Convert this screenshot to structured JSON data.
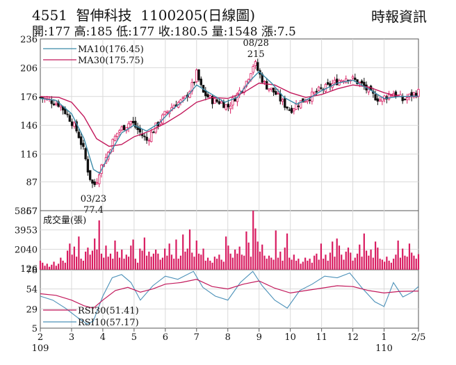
{
  "header": {
    "code": "4551",
    "name": "智伸科技",
    "date": "1100205",
    "chart_kind": "(日線圖)",
    "publisher": "時報資訊",
    "quote": [
      {
        "label": "開",
        "value": "177"
      },
      {
        "label": "高",
        "value": "185"
      },
      {
        "label": "低",
        "value": "177"
      },
      {
        "label": "收",
        "value": "180.5"
      },
      {
        "label": "量",
        "value": "1548"
      },
      {
        "label": "漲",
        "value": "7.5"
      }
    ]
  },
  "colors": {
    "up": "#d81b60",
    "down": "#111111",
    "ma10": "#3a8aa8",
    "ma30": "#c2185b",
    "volume": "#d81b60",
    "rsi30": "#c2185b",
    "rsi10": "#4a90b8",
    "grid": "#d9d9d9",
    "frame": "#555555"
  },
  "chart_data": [
    {
      "type": "candlestick",
      "panel": "price",
      "ylim": [
        57,
        236
      ],
      "yticks": [
        57,
        87,
        116,
        146,
        176,
        206,
        236
      ],
      "x_months": [
        "2",
        "3",
        "4",
        "5",
        "6",
        "7",
        "8",
        "9",
        "10",
        "11",
        "12",
        "1",
        "2/5"
      ],
      "x_years": [
        {
          "at": "2",
          "label": "109"
        },
        {
          "at": "1",
          "label": "110"
        }
      ],
      "legend": [
        {
          "name": "MA10",
          "value": "(176.45)"
        },
        {
          "name": "MA30",
          "value": "(175.75)"
        }
      ],
      "annotations": [
        {
          "date": "03/23",
          "value": "77.4",
          "kind": "low"
        },
        {
          "date": "08/28",
          "value": "215",
          "kind": "high"
        }
      ],
      "series_close": [
        {
          "m": 2.0,
          "v": 175
        },
        {
          "m": 2.3,
          "v": 172
        },
        {
          "m": 2.6,
          "v": 168
        },
        {
          "m": 2.8,
          "v": 160
        },
        {
          "m": 3.0,
          "v": 150
        },
        {
          "m": 3.2,
          "v": 138
        },
        {
          "m": 3.4,
          "v": 118
        },
        {
          "m": 3.55,
          "v": 95
        },
        {
          "m": 3.7,
          "v": 82
        },
        {
          "m": 3.8,
          "v": 88
        },
        {
          "m": 3.9,
          "v": 100
        },
        {
          "m": 4.1,
          "v": 112
        },
        {
          "m": 4.3,
          "v": 128
        },
        {
          "m": 4.5,
          "v": 140
        },
        {
          "m": 4.7,
          "v": 145
        },
        {
          "m": 4.9,
          "v": 150
        },
        {
          "m": 5.1,
          "v": 142
        },
        {
          "m": 5.4,
          "v": 130
        },
        {
          "m": 5.7,
          "v": 145
        },
        {
          "m": 6.0,
          "v": 158
        },
        {
          "m": 6.3,
          "v": 168
        },
        {
          "m": 6.6,
          "v": 172
        },
        {
          "m": 6.9,
          "v": 190
        },
        {
          "m": 7.0,
          "v": 200
        },
        {
          "m": 7.2,
          "v": 180
        },
        {
          "m": 7.5,
          "v": 172
        },
        {
          "m": 7.8,
          "v": 170
        },
        {
          "m": 8.0,
          "v": 165
        },
        {
          "m": 8.3,
          "v": 178
        },
        {
          "m": 8.6,
          "v": 192
        },
        {
          "m": 8.85,
          "v": 212
        },
        {
          "m": 9.0,
          "v": 200
        },
        {
          "m": 9.2,
          "v": 188
        },
        {
          "m": 9.5,
          "v": 180
        },
        {
          "m": 9.8,
          "v": 168
        },
        {
          "m": 10.0,
          "v": 162
        },
        {
          "m": 10.3,
          "v": 170
        },
        {
          "m": 10.6,
          "v": 175
        },
        {
          "m": 10.9,
          "v": 182
        },
        {
          "m": 11.2,
          "v": 186
        },
        {
          "m": 11.5,
          "v": 192
        },
        {
          "m": 11.8,
          "v": 196
        },
        {
          "m": 12.0,
          "v": 194
        },
        {
          "m": 12.3,
          "v": 188
        },
        {
          "m": 12.6,
          "v": 178
        },
        {
          "m": 12.9,
          "v": 172
        },
        {
          "m": 13.0,
          "v": 175
        },
        {
          "m": 13.3,
          "v": 180
        },
        {
          "m": 13.6,
          "v": 172
        },
        {
          "m": 13.9,
          "v": 178
        },
        {
          "m": 14.1,
          "v": 180.5
        }
      ],
      "ma10": [
        {
          "m": 2.0,
          "v": 174
        },
        {
          "m": 2.5,
          "v": 172
        },
        {
          "m": 3.0,
          "v": 158
        },
        {
          "m": 3.4,
          "v": 132
        },
        {
          "m": 3.7,
          "v": 100
        },
        {
          "m": 3.9,
          "v": 96
        },
        {
          "m": 4.2,
          "v": 115
        },
        {
          "m": 4.6,
          "v": 138
        },
        {
          "m": 5.0,
          "v": 146
        },
        {
          "m": 5.4,
          "v": 140
        },
        {
          "m": 5.8,
          "v": 148
        },
        {
          "m": 6.2,
          "v": 162
        },
        {
          "m": 6.6,
          "v": 172
        },
        {
          "m": 7.0,
          "v": 188
        },
        {
          "m": 7.4,
          "v": 180
        },
        {
          "m": 7.9,
          "v": 170
        },
        {
          "m": 8.3,
          "v": 175
        },
        {
          "m": 8.7,
          "v": 192
        },
        {
          "m": 9.0,
          "v": 202
        },
        {
          "m": 9.4,
          "v": 190
        },
        {
          "m": 9.8,
          "v": 175
        },
        {
          "m": 10.2,
          "v": 168
        },
        {
          "m": 10.6,
          "v": 174
        },
        {
          "m": 11.0,
          "v": 182
        },
        {
          "m": 11.5,
          "v": 190
        },
        {
          "m": 12.0,
          "v": 193
        },
        {
          "m": 12.5,
          "v": 184
        },
        {
          "m": 13.0,
          "v": 174
        },
        {
          "m": 13.5,
          "v": 176
        },
        {
          "m": 14.1,
          "v": 176.45
        }
      ],
      "ma30": [
        {
          "m": 2.0,
          "v": 176
        },
        {
          "m": 2.6,
          "v": 175
        },
        {
          "m": 3.0,
          "v": 170
        },
        {
          "m": 3.4,
          "v": 155
        },
        {
          "m": 3.8,
          "v": 132
        },
        {
          "m": 4.2,
          "v": 124
        },
        {
          "m": 4.6,
          "v": 126
        },
        {
          "m": 5.0,
          "v": 134
        },
        {
          "m": 5.5,
          "v": 140
        },
        {
          "m": 6.0,
          "v": 148
        },
        {
          "m": 6.5,
          "v": 158
        },
        {
          "m": 7.0,
          "v": 170
        },
        {
          "m": 7.5,
          "v": 175
        },
        {
          "m": 8.0,
          "v": 174
        },
        {
          "m": 8.5,
          "v": 180
        },
        {
          "m": 9.0,
          "v": 190
        },
        {
          "m": 9.5,
          "v": 188
        },
        {
          "m": 10.0,
          "v": 180
        },
        {
          "m": 10.5,
          "v": 175
        },
        {
          "m": 11.0,
          "v": 178
        },
        {
          "m": 11.5,
          "v": 184
        },
        {
          "m": 12.0,
          "v": 188
        },
        {
          "m": 12.5,
          "v": 186
        },
        {
          "m": 13.0,
          "v": 180
        },
        {
          "m": 13.5,
          "v": 176
        },
        {
          "m": 14.1,
          "v": 175.75
        }
      ]
    },
    {
      "type": "bar",
      "panel": "volume",
      "title": "成交量(張)",
      "ylim": [
        0,
        5867
      ],
      "yticks": [
        126,
        2040,
        3953,
        5867
      ],
      "values": [
        900,
        700,
        400,
        600,
        300,
        500,
        800,
        400,
        600,
        1200,
        900,
        700,
        1900,
        2600,
        1500,
        2300,
        1300,
        3300,
        1100,
        900,
        1800,
        2200,
        1500,
        1900,
        3100,
        2000,
        4900,
        1600,
        1200,
        2400,
        1300,
        1600,
        1100,
        2900,
        1800,
        1200,
        2000,
        1100,
        1500,
        1300,
        2400,
        3000,
        1100,
        700,
        2100,
        1900,
        3200,
        1400,
        1800,
        1300,
        1600,
        2000,
        1600,
        1000,
        1200,
        2100,
        1400,
        2600,
        1500,
        1100,
        3000,
        1100,
        1400,
        3500,
        1800,
        2100,
        4000,
        1700,
        1300,
        2900,
        1600,
        1500,
        2100,
        900,
        1200,
        900,
        700,
        1300,
        1100,
        1500,
        1000,
        800,
        3300,
        2400,
        1600,
        1200,
        2000,
        1600,
        2300,
        1500,
        1400,
        3800,
        2700,
        1300,
        5867,
        4100,
        2800,
        1800,
        2500,
        1400,
        1100,
        1400,
        1200,
        1000,
        3900,
        1200,
        1800,
        900,
        2200,
        3600,
        1200,
        1000,
        1500,
        900,
        1100,
        600,
        800,
        1200,
        900,
        1100,
        700,
        1400,
        1600,
        1000,
        2600,
        1100,
        1500,
        900,
        1700,
        2800,
        1300,
        3100,
        2400,
        1500,
        1000,
        1800,
        2200,
        1700,
        900,
        1200,
        1600,
        2500,
        1300,
        3600,
        1900,
        1400,
        2000,
        1200,
        2800,
        2200,
        1100,
        1000,
        800,
        1300,
        900,
        700,
        1100,
        1500,
        2900,
        1200,
        2100,
        1400,
        1300,
        2600,
        1700,
        1400,
        1100,
        1548
      ]
    },
    {
      "type": "line",
      "panel": "rsi",
      "ylim": [
        5,
        78
      ],
      "yticks": [
        5,
        29,
        54,
        78
      ],
      "legend": [
        {
          "name": "RSI30",
          "value": "(51.41)"
        },
        {
          "name": "RSI10",
          "value": "(57.17)"
        }
      ],
      "rsi30": [
        {
          "m": 2.0,
          "v": 48
        },
        {
          "m": 2.5,
          "v": 46
        },
        {
          "m": 3.0,
          "v": 40
        },
        {
          "m": 3.4,
          "v": 33
        },
        {
          "m": 3.7,
          "v": 30
        },
        {
          "m": 4.0,
          "v": 40
        },
        {
          "m": 4.4,
          "v": 52
        },
        {
          "m": 4.8,
          "v": 56
        },
        {
          "m": 5.2,
          "v": 50
        },
        {
          "m": 5.6,
          "v": 54
        },
        {
          "m": 6.0,
          "v": 60
        },
        {
          "m": 6.5,
          "v": 62
        },
        {
          "m": 7.0,
          "v": 66
        },
        {
          "m": 7.5,
          "v": 57
        },
        {
          "m": 8.0,
          "v": 54
        },
        {
          "m": 8.5,
          "v": 60
        },
        {
          "m": 9.0,
          "v": 64
        },
        {
          "m": 9.5,
          "v": 55
        },
        {
          "m": 10.0,
          "v": 49
        },
        {
          "m": 10.5,
          "v": 52
        },
        {
          "m": 11.0,
          "v": 55
        },
        {
          "m": 11.5,
          "v": 58
        },
        {
          "m": 12.0,
          "v": 57
        },
        {
          "m": 12.5,
          "v": 52
        },
        {
          "m": 13.0,
          "v": 49
        },
        {
          "m": 13.5,
          "v": 51
        },
        {
          "m": 14.1,
          "v": 51.41
        }
      ],
      "rsi10": [
        {
          "m": 2.0,
          "v": 45
        },
        {
          "m": 2.4,
          "v": 40
        },
        {
          "m": 2.8,
          "v": 30
        },
        {
          "m": 3.2,
          "v": 18
        },
        {
          "m": 3.5,
          "v": 10
        },
        {
          "m": 3.7,
          "v": 14
        },
        {
          "m": 4.0,
          "v": 45
        },
        {
          "m": 4.3,
          "v": 68
        },
        {
          "m": 4.6,
          "v": 72
        },
        {
          "m": 4.9,
          "v": 62
        },
        {
          "m": 5.2,
          "v": 40
        },
        {
          "m": 5.6,
          "v": 58
        },
        {
          "m": 6.0,
          "v": 70
        },
        {
          "m": 6.4,
          "v": 66
        },
        {
          "m": 6.9,
          "v": 76
        },
        {
          "m": 7.2,
          "v": 56
        },
        {
          "m": 7.6,
          "v": 45
        },
        {
          "m": 8.0,
          "v": 40
        },
        {
          "m": 8.4,
          "v": 62
        },
        {
          "m": 8.8,
          "v": 76
        },
        {
          "m": 9.1,
          "v": 58
        },
        {
          "m": 9.5,
          "v": 40
        },
        {
          "m": 9.9,
          "v": 30
        },
        {
          "m": 10.3,
          "v": 52
        },
        {
          "m": 10.7,
          "v": 60
        },
        {
          "m": 11.1,
          "v": 70
        },
        {
          "m": 11.5,
          "v": 68
        },
        {
          "m": 11.9,
          "v": 74
        },
        {
          "m": 12.3,
          "v": 55
        },
        {
          "m": 12.7,
          "v": 38
        },
        {
          "m": 13.0,
          "v": 32
        },
        {
          "m": 13.3,
          "v": 62
        },
        {
          "m": 13.6,
          "v": 44
        },
        {
          "m": 13.9,
          "v": 50
        },
        {
          "m": 14.1,
          "v": 57.17
        }
      ]
    }
  ]
}
